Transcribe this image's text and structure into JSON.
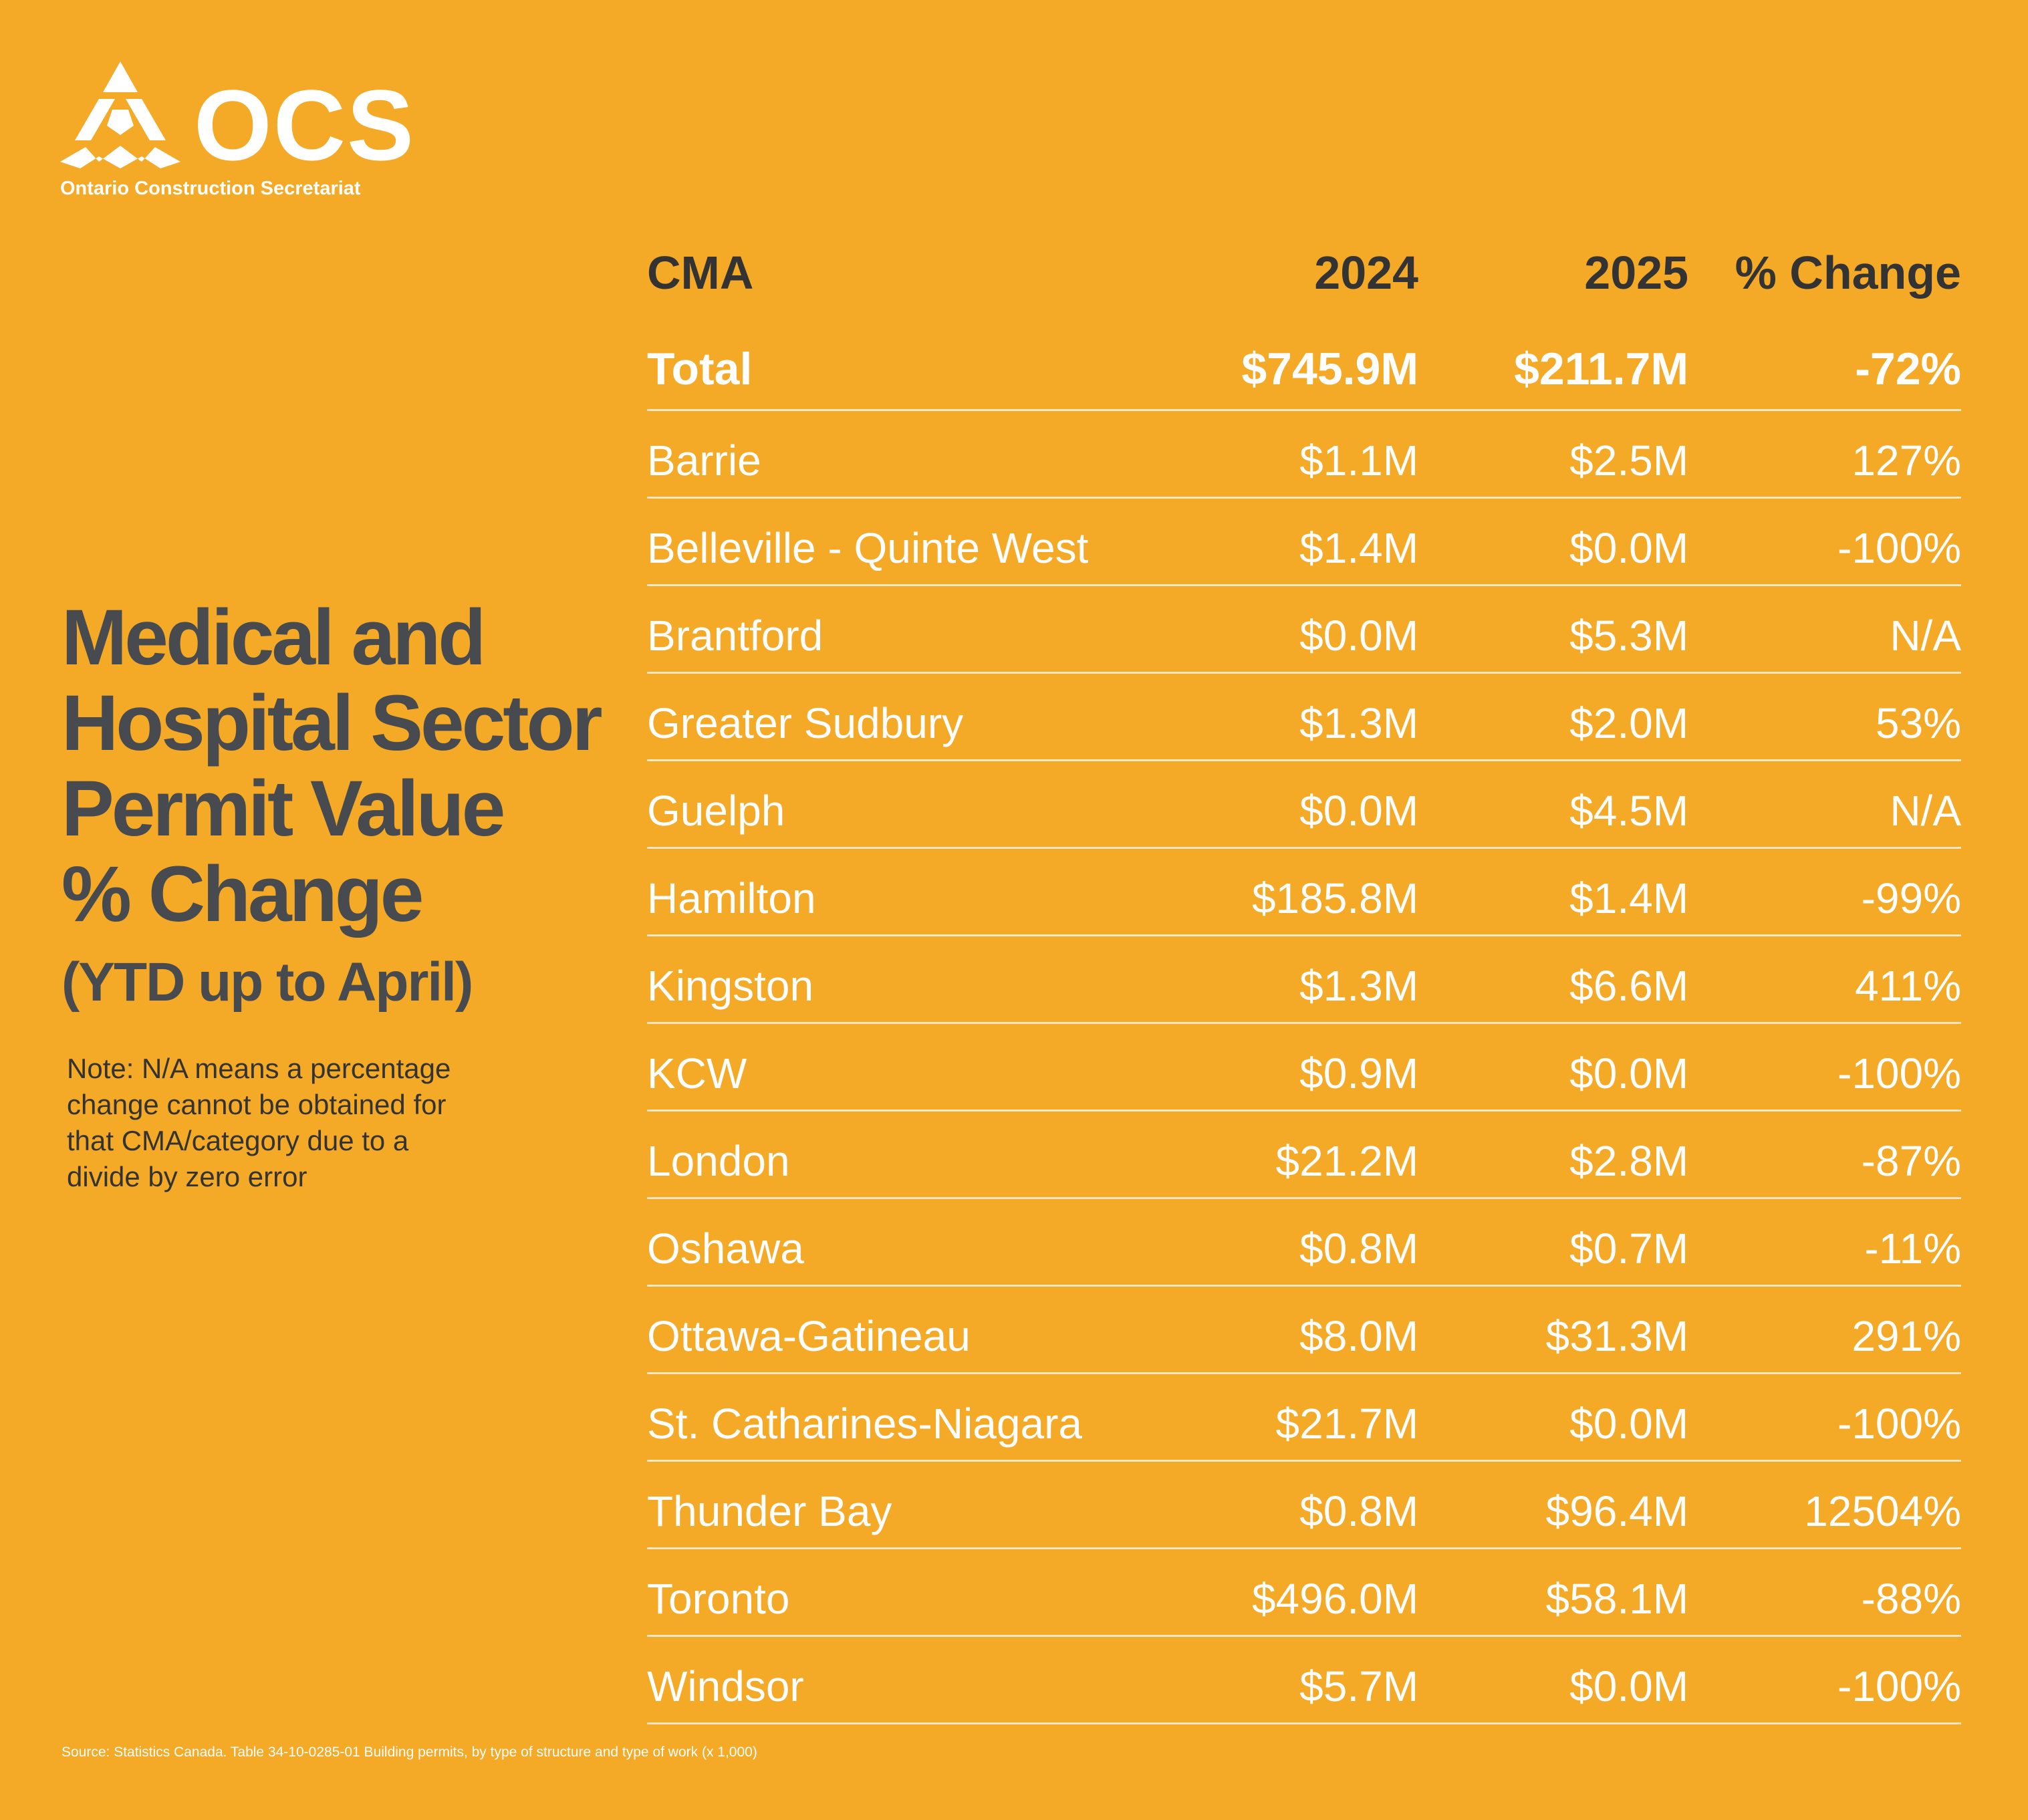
{
  "logo": {
    "name": "OCS",
    "subtitle": "Ontario Construction Secretariat"
  },
  "title": {
    "line1": "Medical and",
    "line2": "Hospital Sector",
    "line3": "Permit Value",
    "line4": "% Change",
    "period": "(YTD up to April)"
  },
  "note": {
    "line1": "Note: N/A means a percentage",
    "line2": "change cannot be obtained for",
    "line3": "that CMA/category due to a",
    "line4": "divide by zero error"
  },
  "source": "Source: Statistics Canada. Table 34-10-0285-01  Building permits, by type of structure and type of work (x 1,000)",
  "colors": {
    "background": "#F4A927",
    "title": "#474A4E",
    "text": "#FFFFFF",
    "rule": "#FBE7C5"
  },
  "chart_data": {
    "type": "table",
    "columns": [
      "CMA",
      "2024",
      "2025",
      "% Change"
    ],
    "total": {
      "cma": "Total",
      "y2024": "$745.9M",
      "y2025": "$211.7M",
      "change": "-72%"
    },
    "rows": [
      {
        "cma": "Barrie",
        "y2024": "$1.1M",
        "y2025": "$2.5M",
        "change": "127%"
      },
      {
        "cma": "Belleville - Quinte West",
        "y2024": "$1.4M",
        "y2025": "$0.0M",
        "change": "-100%"
      },
      {
        "cma": "Brantford",
        "y2024": "$0.0M",
        "y2025": "$5.3M",
        "change": "N/A"
      },
      {
        "cma": "Greater Sudbury",
        "y2024": "$1.3M",
        "y2025": "$2.0M",
        "change": "53%"
      },
      {
        "cma": "Guelph",
        "y2024": "$0.0M",
        "y2025": "$4.5M",
        "change": "N/A"
      },
      {
        "cma": "Hamilton",
        "y2024": "$185.8M",
        "y2025": "$1.4M",
        "change": "-99%"
      },
      {
        "cma": "Kingston",
        "y2024": "$1.3M",
        "y2025": "$6.6M",
        "change": "411%"
      },
      {
        "cma": "KCW",
        "y2024": "$0.9M",
        "y2025": "$0.0M",
        "change": "-100%"
      },
      {
        "cma": "London",
        "y2024": "$21.2M",
        "y2025": "$2.8M",
        "change": "-87%"
      },
      {
        "cma": "Oshawa",
        "y2024": "$0.8M",
        "y2025": "$0.7M",
        "change": "-11%"
      },
      {
        "cma": "Ottawa-Gatineau",
        "y2024": "$8.0M",
        "y2025": "$31.3M",
        "change": "291%"
      },
      {
        "cma": "St. Catharines-Niagara",
        "y2024": "$21.7M",
        "y2025": "$0.0M",
        "change": "-100%"
      },
      {
        "cma": "Thunder Bay",
        "y2024": "$0.8M",
        "y2025": "$96.4M",
        "change": "12504%"
      },
      {
        "cma": "Toronto",
        "y2024": "$496.0M",
        "y2025": "$58.1M",
        "change": "-88%"
      },
      {
        "cma": "Windsor",
        "y2024": "$5.7M",
        "y2025": "$0.0M",
        "change": "-100%"
      }
    ]
  }
}
